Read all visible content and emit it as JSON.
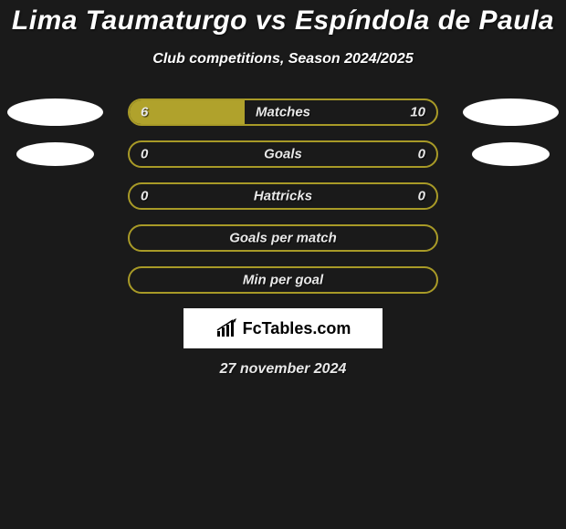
{
  "title": "Lima Taumaturgo vs Espíndola de Paula",
  "subtitle": "Club competitions, Season 2024/2025",
  "date": "27 november 2024",
  "colors": {
    "primary": "#a89a27",
    "fill": "#b0a22c",
    "background": "#1a1a1a",
    "marker": "#ffffff"
  },
  "logo": {
    "text": "FcTables.com"
  },
  "rows": [
    {
      "label": "Matches",
      "left_value": "6",
      "right_value": "10",
      "left_num": 6,
      "right_num": 10,
      "fill_pct": 37.5,
      "show_left_marker": true,
      "show_right_marker": true,
      "marker_size": "large"
    },
    {
      "label": "Goals",
      "left_value": "0",
      "right_value": "0",
      "left_num": 0,
      "right_num": 0,
      "fill_pct": 0,
      "show_left_marker": true,
      "show_right_marker": true,
      "marker_size": "small"
    },
    {
      "label": "Hattricks",
      "left_value": "0",
      "right_value": "0",
      "left_num": 0,
      "right_num": 0,
      "fill_pct": 0,
      "show_left_marker": false,
      "show_right_marker": false
    },
    {
      "label": "Goals per match",
      "left_value": "",
      "right_value": "",
      "fill_pct": 0,
      "show_left_marker": false,
      "show_right_marker": false
    },
    {
      "label": "Min per goal",
      "left_value": "",
      "right_value": "",
      "fill_pct": 0,
      "show_left_marker": false,
      "show_right_marker": false
    }
  ]
}
